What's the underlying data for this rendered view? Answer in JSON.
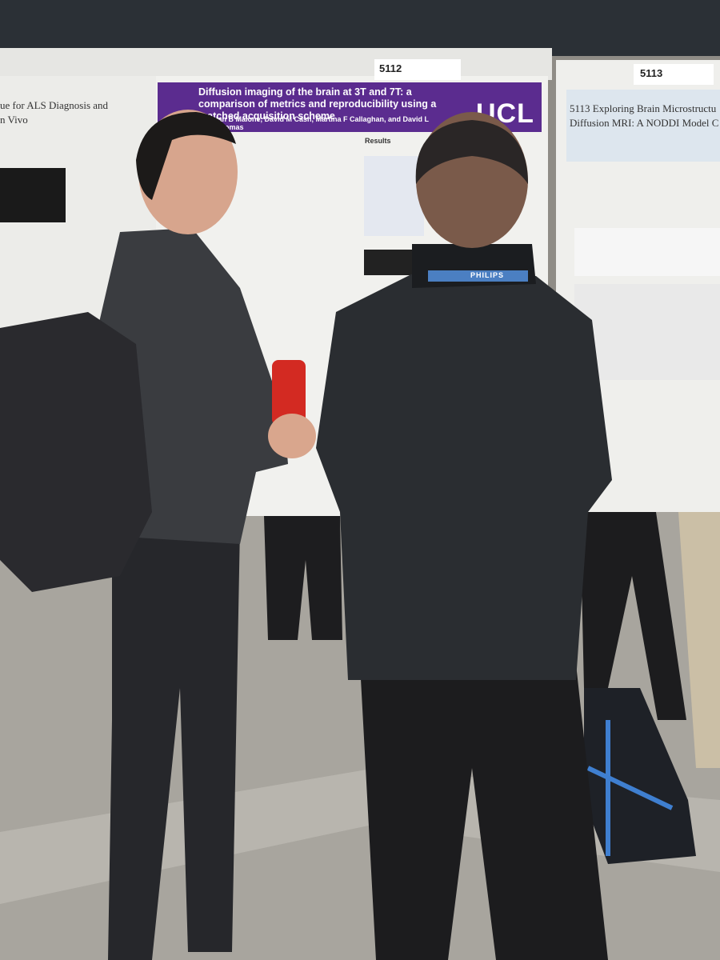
{
  "posters": [
    {
      "number": "5112",
      "title": "Diffusion imaging of the brain at 3T and 7T: a comparison of metrics and reproducibility using a matched acquisition scheme",
      "authors": "Ian B Malone, David M Cash, Martina F Callaghan, and David L Thomas",
      "logo": "UCL",
      "section": "Results"
    },
    {
      "number": "5113",
      "title": "5113 Exploring Brain Microstructu",
      "subtitle": "Diffusion MRI: A NODDI Model C"
    },
    {
      "title": "ue for ALS Diagnosis and",
      "subtitle": "n Vivo"
    }
  ],
  "lanyard": "PHILIPS"
}
